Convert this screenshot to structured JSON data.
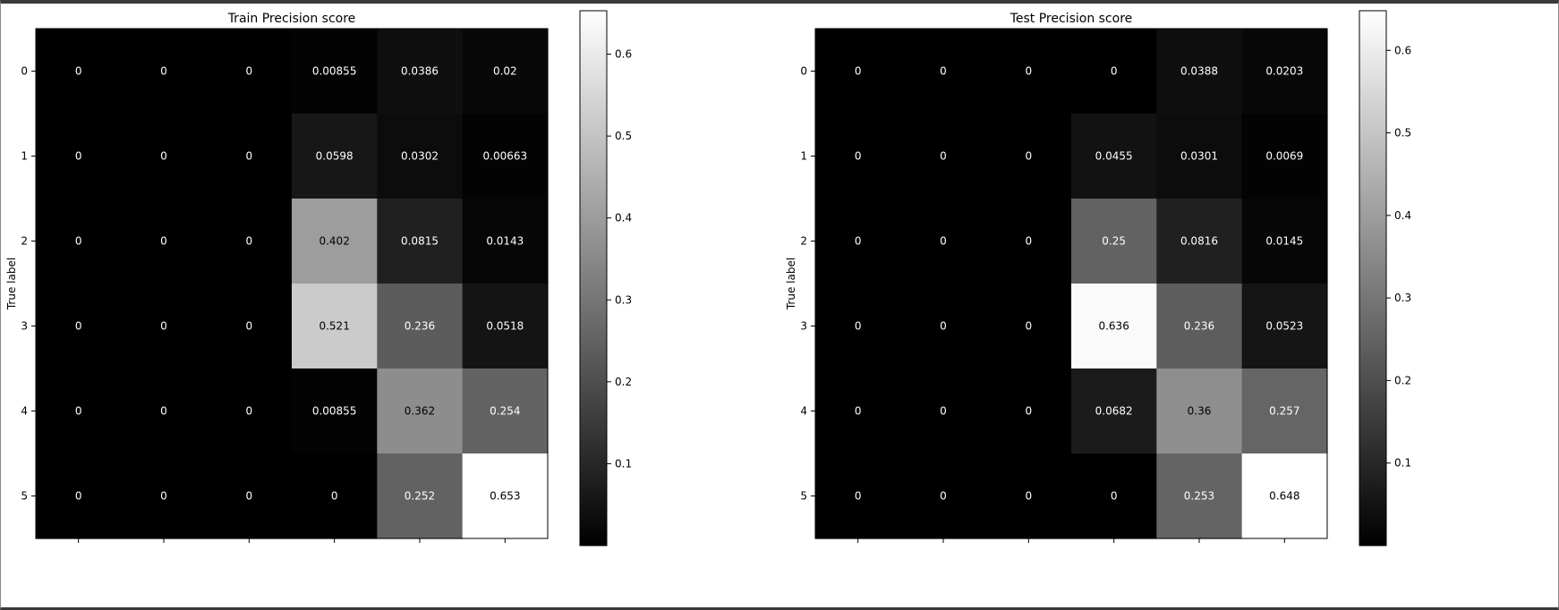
{
  "chart_data": [
    {
      "type": "heatmap",
      "title": "Train Precision score",
      "ylabel": "True label",
      "xlabel": "",
      "rows": [
        "0",
        "1",
        "2",
        "3",
        "4",
        "5"
      ],
      "cols": [
        "",
        "",
        "",
        "",
        "",
        ""
      ],
      "values": [
        [
          0,
          0,
          0,
          0.00855,
          0.0386,
          0.02
        ],
        [
          0,
          0,
          0,
          0.0598,
          0.0302,
          0.00663
        ],
        [
          0,
          0,
          0,
          0.402,
          0.0815,
          0.0143
        ],
        [
          0,
          0,
          0,
          0.521,
          0.236,
          0.0518
        ],
        [
          0,
          0,
          0,
          0.00855,
          0.362,
          0.254
        ],
        [
          0,
          0,
          0,
          0,
          0.252,
          0.653
        ]
      ],
      "labels": [
        [
          "0",
          "0",
          "0",
          "0.00855",
          "0.0386",
          "0.02"
        ],
        [
          "0",
          "0",
          "0",
          "0.0598",
          "0.0302",
          "0.00663"
        ],
        [
          "0",
          "0",
          "0",
          "0.402",
          "0.0815",
          "0.0143"
        ],
        [
          "0",
          "0",
          "0",
          "0.521",
          "0.236",
          "0.0518"
        ],
        [
          "0",
          "0",
          "0",
          "0.00855",
          "0.362",
          "0.254"
        ],
        [
          "0",
          "0",
          "0",
          "0",
          "0.252",
          "0.653"
        ]
      ],
      "colormap": "gray",
      "colorbar": {
        "min": 0,
        "max": 0.653,
        "ticks": [
          0.1,
          0.2,
          0.3,
          0.4,
          0.5,
          0.6
        ],
        "tick_labels": [
          "0.1",
          "0.2",
          "0.3",
          "0.4",
          "0.5",
          "0.6"
        ]
      }
    },
    {
      "type": "heatmap",
      "title": "Test Precision score",
      "ylabel": "True label",
      "xlabel": "",
      "rows": [
        "0",
        "1",
        "2",
        "3",
        "4",
        "5"
      ],
      "cols": [
        "",
        "",
        "",
        "",
        "",
        ""
      ],
      "values": [
        [
          0,
          0,
          0,
          0,
          0.0388,
          0.0203
        ],
        [
          0,
          0,
          0,
          0.0455,
          0.0301,
          0.0069
        ],
        [
          0,
          0,
          0,
          0.25,
          0.0816,
          0.0145
        ],
        [
          0,
          0,
          0,
          0.636,
          0.236,
          0.0523
        ],
        [
          0,
          0,
          0,
          0.0682,
          0.36,
          0.257
        ],
        [
          0,
          0,
          0,
          0,
          0.253,
          0.648
        ]
      ],
      "labels": [
        [
          "0",
          "0",
          "0",
          "0",
          "0.0388",
          "0.0203"
        ],
        [
          "0",
          "0",
          "0",
          "0.0455",
          "0.0301",
          "0.0069"
        ],
        [
          "0",
          "0",
          "0",
          "0.25",
          "0.0816",
          "0.0145"
        ],
        [
          "0",
          "0",
          "0",
          "0.636",
          "0.236",
          "0.0523"
        ],
        [
          "0",
          "0",
          "0",
          "0.0682",
          "0.36",
          "0.257"
        ],
        [
          "0",
          "0",
          "0",
          "0",
          "0.253",
          "0.648"
        ]
      ],
      "colormap": "gray",
      "colorbar": {
        "min": 0,
        "max": 0.648,
        "ticks": [
          0.1,
          0.2,
          0.3,
          0.4,
          0.5,
          0.6
        ],
        "tick_labels": [
          "0.1",
          "0.2",
          "0.3",
          "0.4",
          "0.5",
          "0.6"
        ]
      }
    }
  ]
}
